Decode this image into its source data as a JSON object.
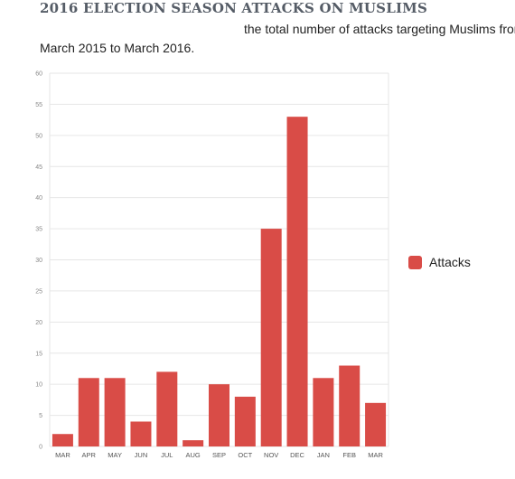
{
  "header": {
    "title": "2016 ELECTION SEASON ATTACKS ON MUSLIMS",
    "subtitle_line1": "the total number of attacks targeting Muslims from",
    "subtitle_line2": "March 2015 to March 2016."
  },
  "colors": {
    "bar": "#d94c47",
    "grid": "#e6e6e6"
  },
  "chart_data": {
    "type": "bar",
    "categories": [
      "MAR",
      "APR",
      "MAY",
      "JUN",
      "JUL",
      "AUG",
      "SEP",
      "OCT",
      "NOV",
      "DEC",
      "JAN",
      "FEB",
      "MAR"
    ],
    "series": [
      {
        "name": "Attacks",
        "values": [
          2,
          11,
          11,
          4,
          12,
          1,
          10,
          8,
          35,
          53,
          11,
          13,
          7
        ]
      }
    ],
    "ylim": [
      0,
      60
    ],
    "yticks": [
      0,
      5,
      10,
      15,
      20,
      25,
      30,
      35,
      40,
      45,
      50,
      55,
      60
    ],
    "grid": true,
    "legend_position": "right"
  }
}
